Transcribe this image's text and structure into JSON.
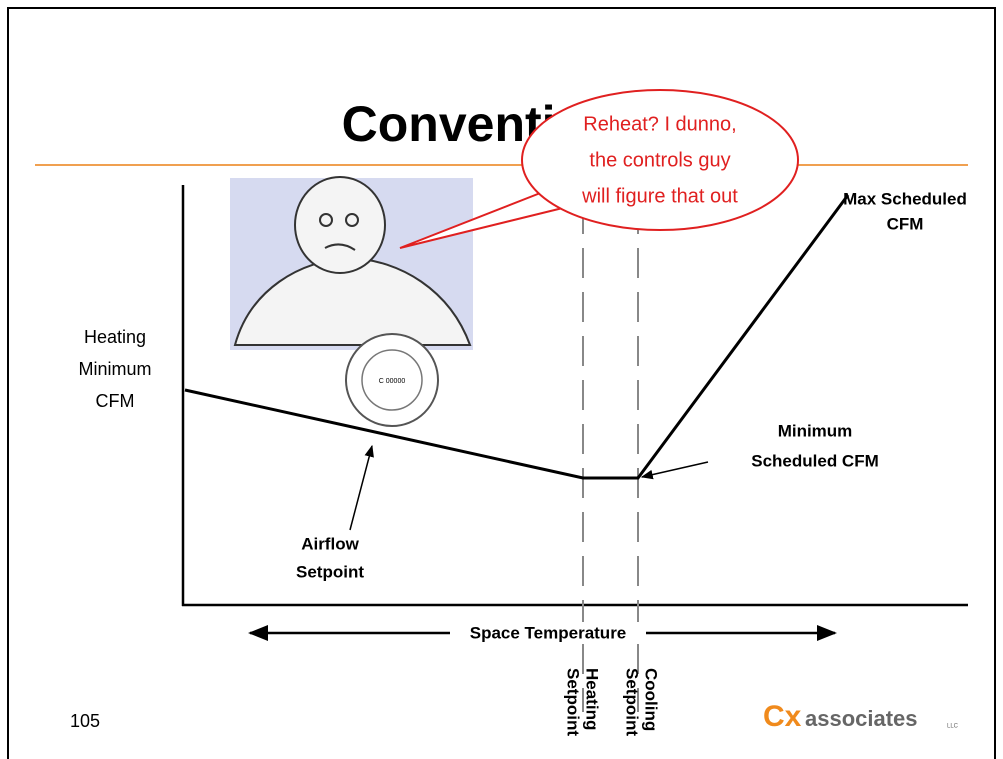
{
  "title": "Conventional",
  "bubble": [
    "Reheat? I dunno,",
    "the controls guy",
    "will  figure that out"
  ],
  "y_axis_label": [
    "Heating",
    "Minimum",
    "CFM"
  ],
  "x_axis_label": "Space Temperature",
  "annotations": {
    "max": [
      "Max Scheduled",
      "CFM"
    ],
    "min": [
      "Minimum",
      "Scheduled CFM"
    ],
    "airflow": [
      "Airflow",
      "Setpoint"
    ],
    "heating": [
      "Heating",
      "Setpoint"
    ],
    "cooling": [
      "Cooling",
      "Setpoint"
    ]
  },
  "seal": "C 00000",
  "page_number": "105",
  "logo": {
    "mark": "Cx",
    "name": "associates",
    "suffix": "LLC"
  }
}
